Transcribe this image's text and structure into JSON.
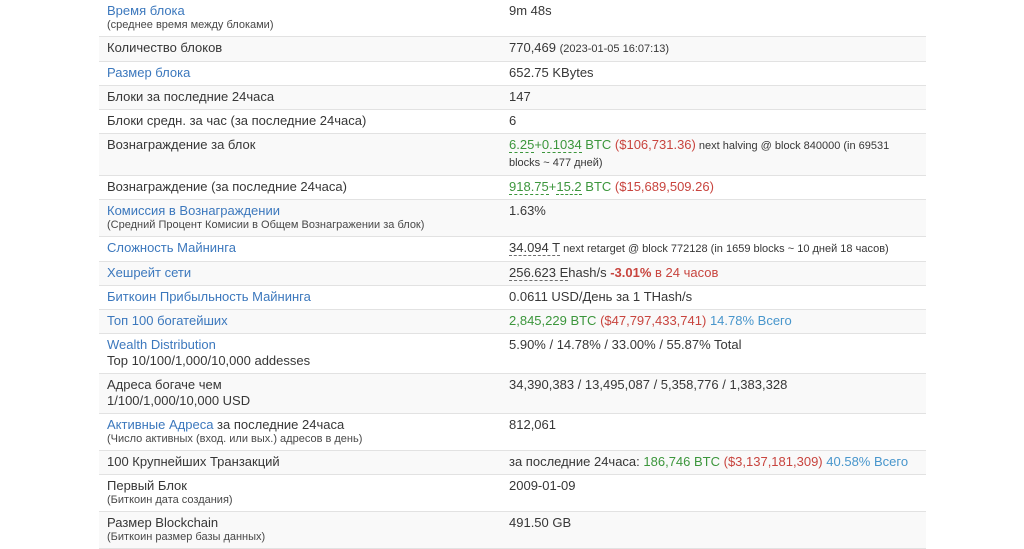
{
  "colors": {
    "link_blue": "#3c78bd",
    "value_link_blue": "#4896cc",
    "green": "#3c963c",
    "red": "#c8443e",
    "stripe_bg": "#f9f9f9",
    "border": "#e2e2e2",
    "text": "#373737"
  },
  "table": {
    "rows": [
      {
        "name": "block-time",
        "striped": false,
        "label": {
          "segments": [
            {
              "type": "link",
              "text": "Время блока"
            }
          ],
          "sub": {
            "text": "(среднее время между блоками)",
            "small": true
          }
        },
        "value": {
          "segments": [
            {
              "type": "text",
              "text": "9m 48s"
            }
          ]
        }
      },
      {
        "name": "blocks-count",
        "striped": true,
        "label": {
          "segments": [
            {
              "type": "text",
              "text": "Количество блоков"
            }
          ]
        },
        "value": {
          "segments": [
            {
              "type": "text",
              "text": "770,469 "
            },
            {
              "type": "small",
              "text": "(2023-01-05 16:07:13)"
            }
          ]
        }
      },
      {
        "name": "block-size",
        "striped": false,
        "label": {
          "segments": [
            {
              "type": "link",
              "text": "Размер блока"
            }
          ]
        },
        "value": {
          "segments": [
            {
              "type": "text",
              "text": "652.75 KBytes"
            }
          ]
        }
      },
      {
        "name": "blocks-last-24h",
        "striped": true,
        "label": {
          "segments": [
            {
              "type": "text",
              "text": "Блоки за последние 24часа"
            }
          ]
        },
        "value": {
          "segments": [
            {
              "type": "text",
              "text": "147"
            }
          ]
        }
      },
      {
        "name": "blocks-avg-per-hour",
        "striped": false,
        "label": {
          "segments": [
            {
              "type": "text",
              "text": "Блоки средн. за час (за последние 24часа)"
            }
          ]
        },
        "value": {
          "segments": [
            {
              "type": "text",
              "text": "6"
            }
          ]
        }
      },
      {
        "name": "block-reward",
        "striped": true,
        "label": {
          "segments": [
            {
              "type": "text",
              "text": "Вознаграждение за блок"
            }
          ]
        },
        "value": {
          "segments": [
            {
              "type": "green-u",
              "text": "6.25"
            },
            {
              "type": "green",
              "text": "+"
            },
            {
              "type": "green-u",
              "text": "0.1034"
            },
            {
              "type": "green",
              "text": " BTC "
            },
            {
              "type": "red",
              "text": "($106,731.36)"
            },
            {
              "type": "small",
              "text": " next halving @ block 840000 (in 69531 blocks ~ 477 дней)"
            }
          ]
        }
      },
      {
        "name": "reward-last-24h",
        "striped": false,
        "label": {
          "segments": [
            {
              "type": "text",
              "text": "Вознаграждение (за последние 24часа)"
            }
          ]
        },
        "value": {
          "segments": [
            {
              "type": "green-u",
              "text": "918.75"
            },
            {
              "type": "green",
              "text": "+"
            },
            {
              "type": "green-u",
              "text": "15.2"
            },
            {
              "type": "green",
              "text": " BTC "
            },
            {
              "type": "red",
              "text": "($15,689,509.26)"
            }
          ]
        }
      },
      {
        "name": "fee-in-reward",
        "striped": true,
        "label": {
          "segments": [
            {
              "type": "link",
              "text": "Комиссия в Вознаграждении"
            }
          ],
          "sub": {
            "text": "(Средний Процент Комисии в Общем Вознагражении за блок)",
            "small": true
          }
        },
        "value": {
          "segments": [
            {
              "type": "text",
              "text": "1.63%"
            }
          ]
        }
      },
      {
        "name": "mining-difficulty",
        "striped": false,
        "label": {
          "segments": [
            {
              "type": "link",
              "text": "Сложность Майнинга"
            }
          ]
        },
        "value": {
          "segments": [
            {
              "type": "text-u",
              "text": "34.094 T"
            },
            {
              "type": "small",
              "text": " next retarget @ block 772128 (in 1659 blocks ~ 10 дней 18 часов)"
            }
          ]
        }
      },
      {
        "name": "network-hashrate",
        "striped": true,
        "label": {
          "segments": [
            {
              "type": "link",
              "text": "Хешрейт сети"
            }
          ]
        },
        "value": {
          "segments": [
            {
              "type": "text-u",
              "text": "256.623 E"
            },
            {
              "type": "text",
              "text": "hash/s "
            },
            {
              "type": "red-bold",
              "text": "-3.01%"
            },
            {
              "type": "red",
              "text": " в 24 часов"
            }
          ]
        }
      },
      {
        "name": "mining-profitability",
        "striped": false,
        "label": {
          "segments": [
            {
              "type": "link",
              "text": "Биткоин Прибыльность Майнинга"
            }
          ]
        },
        "value": {
          "segments": [
            {
              "type": "text",
              "text": "0.0611 USD/День за 1 THash/s"
            }
          ]
        }
      },
      {
        "name": "top-100-richest",
        "striped": true,
        "label": {
          "segments": [
            {
              "type": "link",
              "text": "Топ 100 богатейших"
            }
          ]
        },
        "value": {
          "segments": [
            {
              "type": "green",
              "text": "2,845,229 BTC "
            },
            {
              "type": "red",
              "text": "($47,797,433,741)"
            },
            {
              "type": "text",
              "text": " "
            },
            {
              "type": "blue-link",
              "text": "14.78% Всего"
            }
          ]
        }
      },
      {
        "name": "wealth-distribution",
        "striped": false,
        "label": {
          "segments": [
            {
              "type": "link",
              "text": "Wealth Distribution"
            }
          ],
          "sub": {
            "text": "Top 10/100/1,000/10,000 addesses",
            "small": false
          }
        },
        "value": {
          "segments": [
            {
              "type": "text",
              "text": "5.90% / 14.78% / 33.00% / 55.87% Total"
            }
          ]
        }
      },
      {
        "name": "addresses-richer-than",
        "striped": true,
        "label": {
          "segments": [
            {
              "type": "text",
              "text": "Адреса богаче чем"
            }
          ],
          "sub": {
            "text": "1/100/1,000/10,000 USD",
            "small": false
          }
        },
        "value": {
          "segments": [
            {
              "type": "text",
              "text": "34,390,383 / 13,495,087 / 5,358,776 / 1,383,328"
            }
          ]
        }
      },
      {
        "name": "active-addresses",
        "striped": false,
        "label": {
          "segments": [
            {
              "type": "link",
              "text": "Активные Адреса"
            },
            {
              "type": "text",
              "text": " за последние 24часа"
            }
          ],
          "sub": {
            "text": "(Число активных (вход. или вых.) адресов в день)",
            "small": true
          }
        },
        "value": {
          "segments": [
            {
              "type": "text",
              "text": "812,061"
            }
          ]
        }
      },
      {
        "name": "top-100-transactions",
        "striped": true,
        "label": {
          "segments": [
            {
              "type": "text",
              "text": "100 Крупнейших Транзакций"
            }
          ]
        },
        "value": {
          "segments": [
            {
              "type": "text",
              "text": "за последние 24часа: "
            },
            {
              "type": "green",
              "text": "186,746 BTC "
            },
            {
              "type": "red",
              "text": "($3,137,181,309)"
            },
            {
              "type": "text",
              "text": " "
            },
            {
              "type": "blue-link",
              "text": "40.58% Всего"
            }
          ]
        }
      },
      {
        "name": "first-block",
        "striped": false,
        "label": {
          "segments": [
            {
              "type": "text",
              "text": "Первый Блок"
            }
          ],
          "sub": {
            "text": "(Биткоин дата создания)",
            "small": true
          }
        },
        "value": {
          "segments": [
            {
              "type": "text",
              "text": "2009-01-09"
            }
          ]
        }
      },
      {
        "name": "blockchain-size",
        "striped": true,
        "label": {
          "segments": [
            {
              "type": "text",
              "text": "Размер Blockchain"
            }
          ],
          "sub": {
            "text": "(Биткоин размер базы данных)",
            "small": true
          }
        },
        "value": {
          "segments": [
            {
              "type": "text",
              "text": "491.50 GB"
            }
          ]
        }
      }
    ]
  }
}
